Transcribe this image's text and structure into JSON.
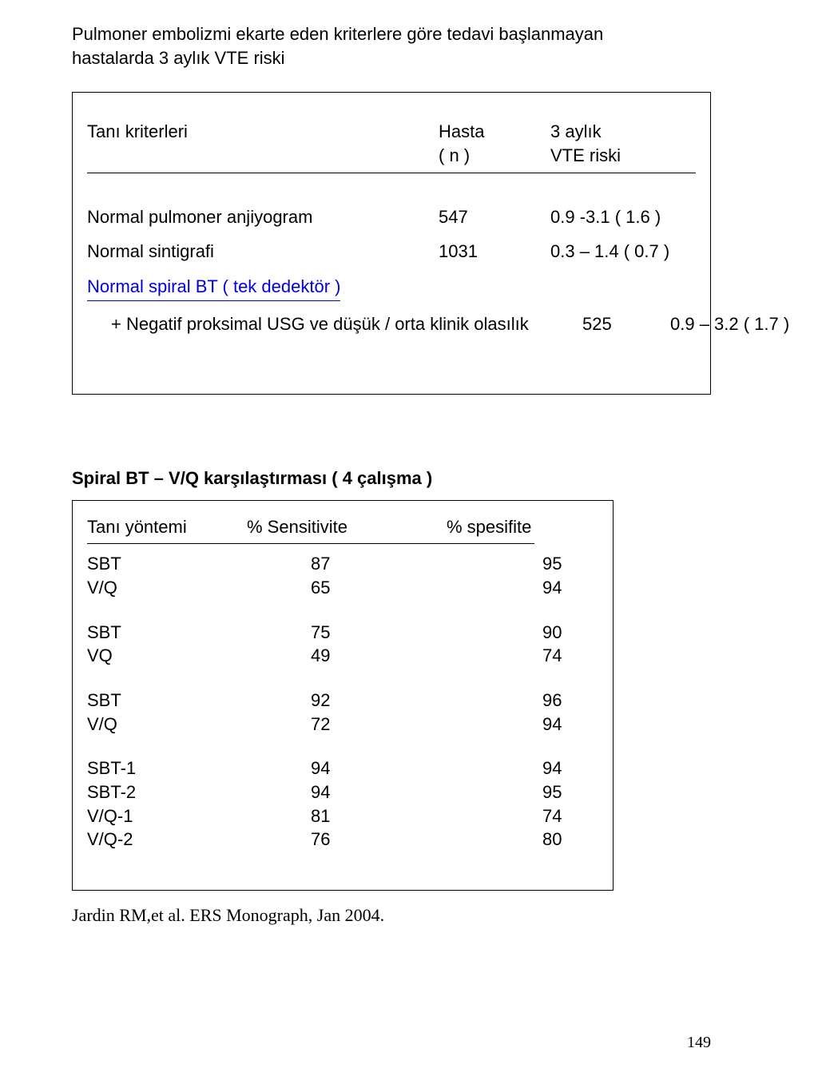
{
  "title_line1": "Pulmoner embolizmi ekarte eden kriterlere göre  tedavi başlanmayan",
  "title_line2": "hastalarda  3 aylık VTE riski",
  "table1": {
    "hdr_label": "Tanı kriterleri",
    "hdr_n_l1": "Hasta",
    "hdr_n_l2": "( n  )",
    "hdr_risk_l1": "3 aylık",
    "hdr_risk_l2": "VTE riski",
    "r1_label": "Normal pulmoner anjiyogram",
    "r1_n": "547",
    "r1_risk": "0.9 -3.1 ( 1.6 )",
    "r2_label": "Normal  sintigrafi",
    "r2_n": "1031",
    "r2_risk": "0.3 – 1.4 ( 0.7 )",
    "r3_label": "Normal spiral BT ( tek dedektör )",
    "r4_label": "+  Negatif  proksimal USG  ve  düşük / orta klinik olasılık",
    "r4_n": "525",
    "r4_risk": "0.9 – 3.2 ( 1.7 )"
  },
  "table2": {
    "title": "Spiral BT – V/Q karşılaştırması   ( 4 çalışma )",
    "hdr_label": "Tanı yöntemi",
    "hdr_sens": "% Sensitivite",
    "hdr_spec": "% spesifite",
    "rows": [
      {
        "label": "SBT",
        "sens": "87",
        "spec": "95"
      },
      {
        "label": "V/Q",
        "sens": "65",
        "spec": "94"
      },
      {
        "label": "SBT",
        "sens": "75",
        "spec": "90"
      },
      {
        "label": "VQ",
        "sens": "49",
        "spec": "74"
      },
      {
        "label": "SBT",
        "sens": "92",
        "spec": "96"
      },
      {
        "label": "V/Q",
        "sens": "72",
        "spec": "94"
      },
      {
        "label": "SBT-1",
        "sens": "94",
        "spec": "94"
      },
      {
        "label": "SBT-2",
        "sens": "94",
        "spec": "95"
      },
      {
        "label": "V/Q-1",
        "sens": "81",
        "spec": "74"
      },
      {
        "label": "V/Q-2",
        "sens": "76",
        "spec": "80"
      }
    ]
  },
  "citation": "Jardin RM,et al. ERS Monograph, Jan 2004.",
  "pagenum": "149"
}
